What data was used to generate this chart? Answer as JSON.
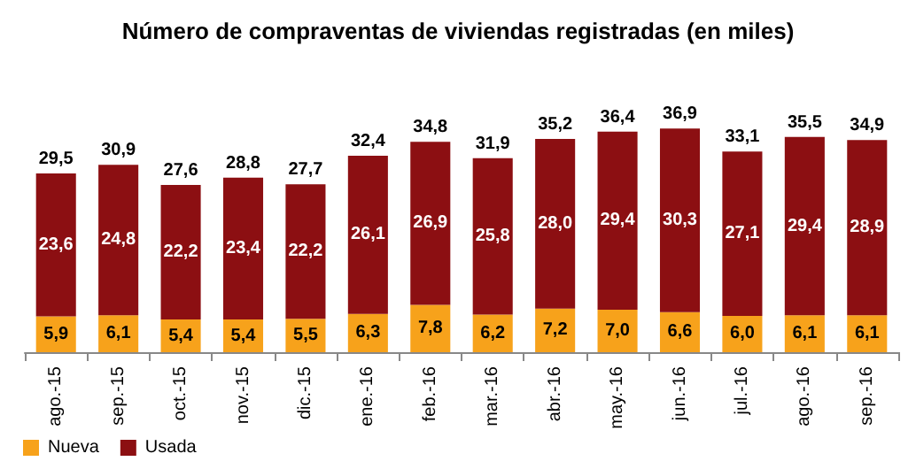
{
  "chart_data": {
    "type": "bar",
    "title": "Número de compraventas de viviendas registradas (en miles)",
    "categories": [
      "ago.-15",
      "sep.-15",
      "oct.-15",
      "nov.-15",
      "dic.-15",
      "ene.-16",
      "feb.-16",
      "mar.-16",
      "abr.-16",
      "may.-16",
      "jun.-16",
      "jul.-16",
      "ago.-16",
      "sep.-16"
    ],
    "stacked": true,
    "tick_labels": "x",
    "legend": "bottom left",
    "series": [
      {
        "name": "Nueva",
        "color": "#f7a21b",
        "values": [
          5.9,
          6.1,
          5.4,
          5.4,
          5.5,
          6.3,
          7.8,
          6.2,
          7.2,
          7.0,
          6.6,
          6.0,
          6.1,
          6.1
        ],
        "value_labels": [
          "5,9",
          "6,1",
          "5,4",
          "5,4",
          "5,5",
          "6,3",
          "7,8",
          "6,2",
          "7,2",
          "7,0",
          "6,6",
          "6,0",
          "6,1",
          "6,1"
        ]
      },
      {
        "name": "Usada",
        "color": "#8c0f12",
        "values": [
          23.6,
          24.8,
          22.2,
          23.4,
          22.2,
          26.1,
          26.9,
          25.8,
          28.0,
          29.4,
          30.3,
          27.1,
          29.4,
          28.9
        ],
        "value_labels": [
          "23,6",
          "24,8",
          "22,2",
          "23,4",
          "22,2",
          "26,1",
          "26,9",
          "25,8",
          "28,0",
          "29,4",
          "30,3",
          "27,1",
          "29,4",
          "28,9"
        ]
      }
    ],
    "totals": [
      "29,5",
      "30,9",
      "27,6",
      "28,8",
      "27,7",
      "32,4",
      "34,8",
      "31,9",
      "35,2",
      "36,4",
      "36,9",
      "33,1",
      "35,5",
      "34,9"
    ]
  }
}
